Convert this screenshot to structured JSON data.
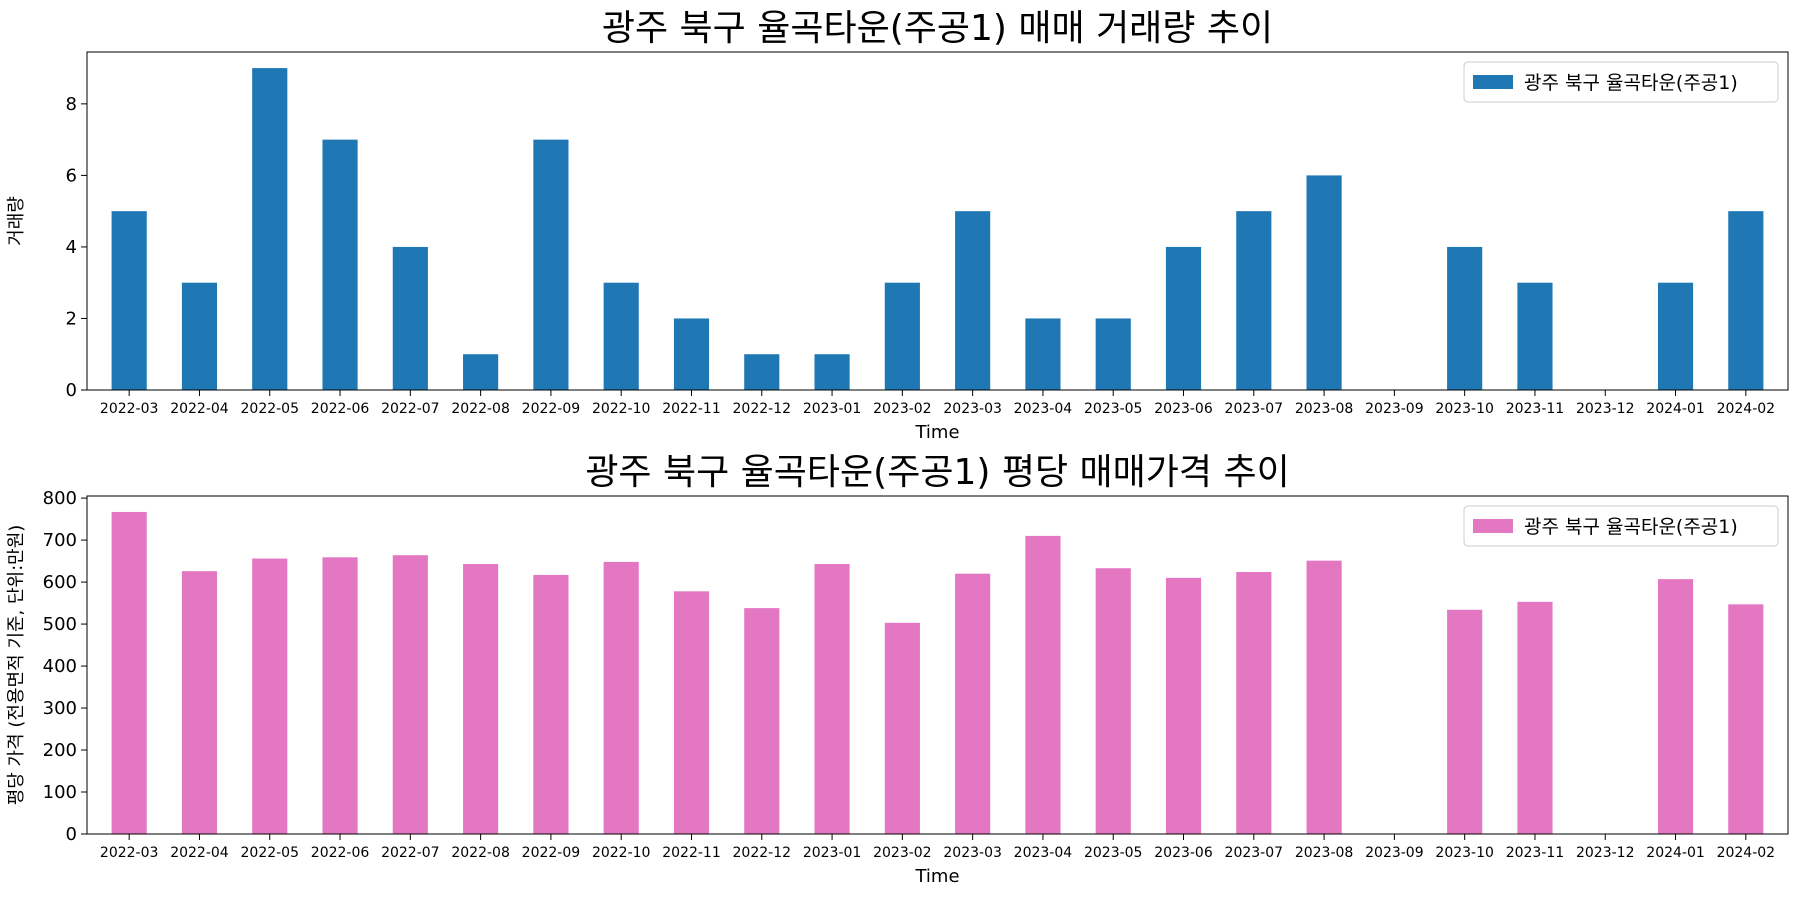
{
  "chart_data": [
    {
      "type": "bar",
      "title": "광주 북구 율곡타운(주공1) 매매 거래량 추이",
      "xlabel": "Time",
      "ylabel": "거래량",
      "ylim": [
        0,
        9.45
      ],
      "yticks": [
        0,
        2,
        4,
        6,
        8
      ],
      "legend_position": "top-right",
      "grid": false,
      "color": "#1f77b4",
      "categories": [
        "2022-03",
        "2022-04",
        "2022-05",
        "2022-06",
        "2022-07",
        "2022-08",
        "2022-09",
        "2022-10",
        "2022-11",
        "2022-12",
        "2023-01",
        "2023-02",
        "2023-03",
        "2023-04",
        "2023-05",
        "2023-06",
        "2023-07",
        "2023-08",
        "2023-09",
        "2023-10",
        "2023-11",
        "2023-12",
        "2024-01",
        "2024-02"
      ],
      "series": [
        {
          "name": "광주 북구 율곡타운(주공1)",
          "values": [
            5,
            3,
            9,
            7,
            4,
            1,
            7,
            3,
            2,
            1,
            1,
            3,
            5,
            2,
            2,
            4,
            5,
            6,
            0,
            4,
            3,
            0,
            3,
            5
          ]
        }
      ]
    },
    {
      "type": "bar",
      "title": "광주 북구 율곡타운(주공1) 평당 매매가격 추이",
      "xlabel": "Time",
      "ylabel": "평당 가격 (전용면적 기준, 단위:만원)",
      "ylim": [
        0,
        805
      ],
      "yticks": [
        0,
        100,
        200,
        300,
        400,
        500,
        600,
        700,
        800
      ],
      "legend_position": "top-right",
      "grid": false,
      "color": "#e377c2",
      "categories": [
        "2022-03",
        "2022-04",
        "2022-05",
        "2022-06",
        "2022-07",
        "2022-08",
        "2022-09",
        "2022-10",
        "2022-11",
        "2022-12",
        "2023-01",
        "2023-02",
        "2023-03",
        "2023-04",
        "2023-05",
        "2023-06",
        "2023-07",
        "2023-08",
        "2023-09",
        "2023-10",
        "2023-11",
        "2023-12",
        "2024-01",
        "2024-02"
      ],
      "series": [
        {
          "name": "광주 북구 율곡타운(주공1)",
          "values": [
            767,
            626,
            656,
            659,
            664,
            643,
            617,
            648,
            578,
            538,
            643,
            503,
            620,
            710,
            633,
            610,
            624,
            651,
            0,
            534,
            553,
            0,
            607,
            547
          ]
        }
      ]
    }
  ]
}
